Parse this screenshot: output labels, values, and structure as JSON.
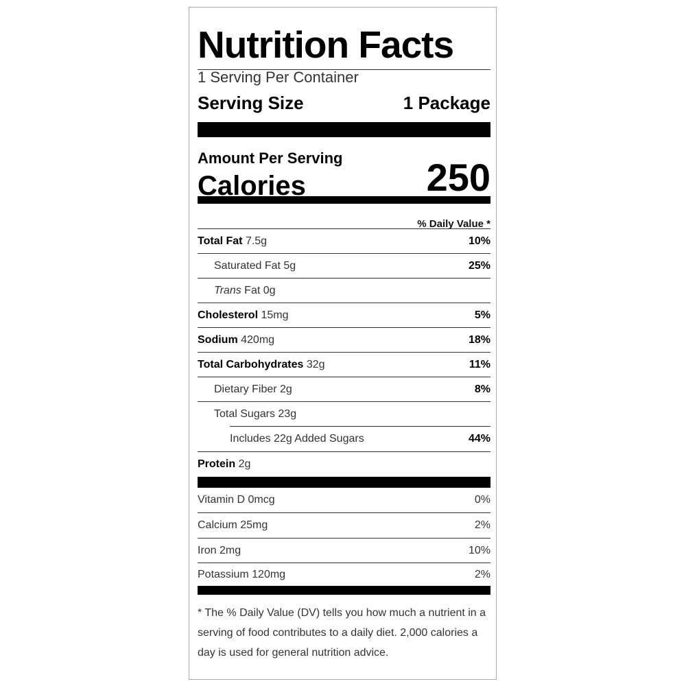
{
  "title": "Nutrition Facts",
  "servings_per_container": "1 Serving Per Container",
  "serving_size": {
    "label": "Serving Size",
    "value": "1 Package"
  },
  "amount_per_serving": "Amount Per Serving",
  "calories": {
    "label": "Calories",
    "value": "250"
  },
  "daily_value_header": "% Daily Value *",
  "nutrients": [
    {
      "name": "Total Fat",
      "amount": "7.5g",
      "dv": "10%"
    },
    {
      "name": "Saturated Fat",
      "amount": "5g",
      "dv": "25%"
    },
    {
      "name": "Trans",
      "name_suffix": "Fat",
      "amount": "0g",
      "dv": ""
    },
    {
      "name": "Cholesterol",
      "amount": "15mg",
      "dv": "5%"
    },
    {
      "name": "Sodium",
      "amount": "420mg",
      "dv": "18%"
    },
    {
      "name": "Total Carbohydrates",
      "amount": "32g",
      "dv": "11%"
    },
    {
      "name": "Dietary Fiber",
      "amount": "2g",
      "dv": "8%"
    },
    {
      "name": "Total Sugars",
      "amount": "23g",
      "dv": ""
    },
    {
      "name": "Includes 22g Added Sugars",
      "amount": "",
      "dv": "44%"
    },
    {
      "name": "Protein",
      "amount": "2g",
      "dv": ""
    }
  ],
  "vitamins": [
    {
      "name": "Vitamin D",
      "amount": "0mcg",
      "dv": "0%"
    },
    {
      "name": "Calcium",
      "amount": "25mg",
      "dv": "2%"
    },
    {
      "name": "Iron",
      "amount": "2mg",
      "dv": "10%"
    },
    {
      "name": "Potassium",
      "amount": "120mg",
      "dv": "2%"
    }
  ],
  "footnote": "* The % Daily Value (DV) tells you how much a nutrient in a serving of food contributes to a daily diet. 2,000 calories a day is used for general nutrition advice."
}
